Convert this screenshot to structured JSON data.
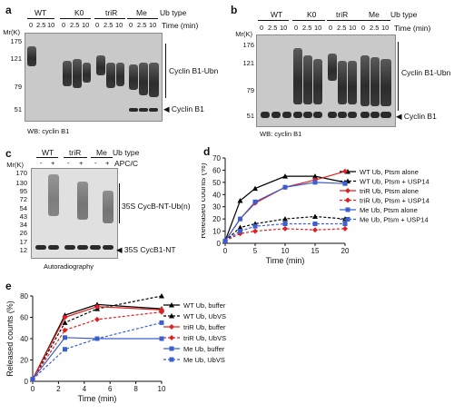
{
  "panel_a": {
    "label": "a",
    "lane_groups": [
      "WT",
      "K0",
      "triR",
      "Me"
    ],
    "ub_type_label": "Ub type",
    "times": [
      "0",
      "2.5",
      "10"
    ],
    "time_label": "Time (min)",
    "mw_title": "Mr(K)",
    "mw_marks": [
      "175",
      "121",
      "79",
      "51"
    ],
    "bracket_label": "Cyclin B1-Ubn",
    "arrow_label": "Cyclin B1",
    "footer": "WB: cyclin B1"
  },
  "panel_b": {
    "label": "b",
    "lane_groups": [
      "WT",
      "K0",
      "triR",
      "Me"
    ],
    "ub_type_label": "Ub type",
    "times": [
      "0",
      "2.5",
      "10"
    ],
    "time_label": "Time (min)",
    "mw_title": "Mr(K)",
    "mw_marks": [
      "176",
      "121",
      "79",
      "51"
    ],
    "bracket_label": "Cyclin B1-Ubn",
    "arrow_label": "Cyclin B1",
    "footer": "WB: cyclin B1"
  },
  "panel_c": {
    "label": "c",
    "lane_groups": [
      "WT",
      "triR",
      "Me"
    ],
    "ub_type_label": "Ub type",
    "apc_signs": [
      "-",
      "+"
    ],
    "apc_label": "APC/C",
    "mw_title": "Mr(K)",
    "mw_marks": [
      "170",
      "130",
      "95",
      "72",
      "54",
      "43",
      "34",
      "26",
      "17",
      "12"
    ],
    "bracket_label": "35S CycB-NT-Ub(n)",
    "arrow_label": "35S CycB1-NT",
    "footer": "Autoradiography"
  },
  "panel_d": {
    "label": "d",
    "chart_data": {
      "type": "line",
      "xlabel": "Time (min)",
      "ylabel": "Released counts (%)",
      "xlim": [
        0,
        20
      ],
      "ylim": [
        0,
        70
      ],
      "xticks": [
        0,
        5,
        10,
        15,
        20
      ],
      "yticks": [
        0,
        10,
        20,
        30,
        40,
        50,
        60,
        70
      ],
      "x": [
        0,
        2.5,
        5,
        10,
        15,
        20
      ],
      "series": [
        {
          "name": "WT Ub, Ptsm alone",
          "values": [
            2,
            35,
            45,
            55,
            55,
            50
          ],
          "color": "#000000",
          "dashed": false,
          "marker": "triangle"
        },
        {
          "name": "WT Ub, Ptsm + USP14",
          "values": [
            2,
            13,
            16,
            20,
            22,
            20
          ],
          "color": "#000000",
          "dashed": true,
          "marker": "triangle"
        },
        {
          "name": "triR Ub, Ptsm alone",
          "values": [
            2,
            20,
            33,
            46,
            52,
            59
          ],
          "color": "#e02020",
          "dashed": false,
          "marker": "diamond"
        },
        {
          "name": "triR Ub, Ptsm + USP14",
          "values": [
            2,
            8,
            10,
            12,
            11,
            12
          ],
          "color": "#e02020",
          "dashed": true,
          "marker": "diamond"
        },
        {
          "name": "Me Ub, Ptsm alone",
          "values": [
            2,
            20,
            34,
            46,
            50,
            49
          ],
          "color": "#3b5fd0",
          "dashed": false,
          "marker": "square"
        },
        {
          "name": "Me Ub, Ptsm + USP14",
          "values": [
            2,
            10,
            14,
            16,
            16,
            16
          ],
          "color": "#3b5fd0",
          "dashed": true,
          "marker": "square"
        }
      ]
    }
  },
  "panel_e": {
    "label": "e",
    "chart_data": {
      "type": "line",
      "xlabel": "Time (min)",
      "ylabel": "Released counts (%)",
      "xlim": [
        0,
        10
      ],
      "ylim": [
        0,
        80
      ],
      "xticks": [
        0,
        2,
        4,
        6,
        8,
        10
      ],
      "yticks": [
        0,
        20,
        40,
        60,
        80
      ],
      "x": [
        0,
        2.5,
        5,
        10
      ],
      "series": [
        {
          "name": "WT Ub, buffer",
          "values": [
            2,
            62,
            72,
            68
          ],
          "color": "#000000",
          "dashed": false,
          "marker": "triangle"
        },
        {
          "name": "WT Ub, UbVS",
          "values": [
            2,
            55,
            68,
            80
          ],
          "color": "#000000",
          "dashed": true,
          "marker": "triangle"
        },
        {
          "name": "triR Ub, buffer",
          "values": [
            2,
            60,
            70,
            67
          ],
          "color": "#e02020",
          "dashed": false,
          "marker": "diamond"
        },
        {
          "name": "triR Ub, UbVS",
          "values": [
            2,
            48,
            58,
            65
          ],
          "color": "#e02020",
          "dashed": true,
          "marker": "diamond"
        },
        {
          "name": "Me Ub, buffer",
          "values": [
            2,
            41,
            40,
            40
          ],
          "color": "#3b5fd0",
          "dashed": false,
          "marker": "square"
        },
        {
          "name": "Me Ub, UbVS",
          "values": [
            2,
            30,
            40,
            55
          ],
          "color": "#3b5fd0",
          "dashed": true,
          "marker": "square"
        }
      ]
    }
  }
}
